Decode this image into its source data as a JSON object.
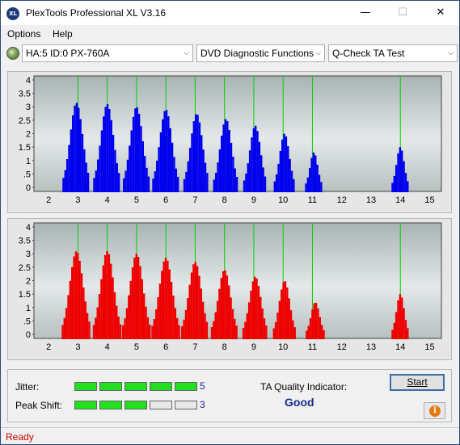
{
  "window": {
    "title": "PlexTools Professional XL V3.16",
    "app_icon_text": "XL",
    "minimize": "—",
    "maximize": "☐",
    "close": "✕"
  },
  "menu": {
    "options": "Options",
    "help": "Help"
  },
  "toolbar": {
    "drive": "HA:5 ID:0  PX-760A",
    "function": "DVD Diagnostic Functions",
    "test": "Q-Check TA Test",
    "arrow": "⌵"
  },
  "chart_data": [
    {
      "type": "bar",
      "panel": "top",
      "color": "#0000ee",
      "x_ticks": [
        2,
        3,
        4,
        5,
        6,
        7,
        8,
        9,
        10,
        11,
        12,
        13,
        14,
        15
      ],
      "y_ticks": [
        0,
        0.5,
        1,
        1.5,
        2,
        2.5,
        3,
        3.5,
        4
      ],
      "y_tick_labels": [
        "0",
        ".5",
        "1",
        "1.5",
        "2",
        "2.5",
        "3",
        "3.5",
        "4"
      ],
      "xlim": [
        1.5,
        15.4
      ],
      "ylim": [
        -0.15,
        4.15
      ],
      "markers": [
        3,
        4,
        5,
        6,
        7,
        8,
        9,
        10,
        11,
        14
      ],
      "peaks": [
        {
          "center": 2.95,
          "height": 3.15,
          "width": 0.33
        },
        {
          "center": 4.0,
          "height": 3.1,
          "width": 0.33
        },
        {
          "center": 5.0,
          "height": 3.0,
          "width": 0.32
        },
        {
          "center": 6.0,
          "height": 2.9,
          "width": 0.32
        },
        {
          "center": 7.05,
          "height": 2.75,
          "width": 0.31
        },
        {
          "center": 8.05,
          "height": 2.55,
          "width": 0.3
        },
        {
          "center": 9.05,
          "height": 2.3,
          "width": 0.28
        },
        {
          "center": 10.05,
          "height": 2.0,
          "width": 0.25
        },
        {
          "center": 11.05,
          "height": 1.3,
          "width": 0.2
        },
        {
          "center": 14.0,
          "height": 1.5,
          "width": 0.2
        }
      ]
    },
    {
      "type": "bar",
      "panel": "bottom",
      "color": "#ee0000",
      "x_ticks": [
        2,
        3,
        4,
        5,
        6,
        7,
        8,
        9,
        10,
        11,
        12,
        13,
        14,
        15
      ],
      "y_ticks": [
        0,
        0.5,
        1,
        1.5,
        2,
        2.5,
        3,
        3.5,
        4
      ],
      "y_tick_labels": [
        "0",
        ".5",
        "1",
        "1.5",
        "2",
        "2.5",
        "3",
        "3.5",
        "4"
      ],
      "xlim": [
        1.5,
        15.4
      ],
      "ylim": [
        -0.15,
        4.15
      ],
      "markers": [
        3,
        4,
        5,
        6,
        7,
        8,
        9,
        10,
        11,
        14
      ],
      "peaks": [
        {
          "center": 2.95,
          "height": 3.1,
          "width": 0.35
        },
        {
          "center": 4.0,
          "height": 3.1,
          "width": 0.34
        },
        {
          "center": 5.0,
          "height": 3.0,
          "width": 0.34
        },
        {
          "center": 6.0,
          "height": 2.85,
          "width": 0.34
        },
        {
          "center": 7.0,
          "height": 2.7,
          "width": 0.33
        },
        {
          "center": 8.0,
          "height": 2.4,
          "width": 0.32
        },
        {
          "center": 9.05,
          "height": 2.15,
          "width": 0.3
        },
        {
          "center": 10.05,
          "height": 2.0,
          "width": 0.27
        },
        {
          "center": 11.1,
          "height": 1.2,
          "width": 0.22
        },
        {
          "center": 14.0,
          "height": 1.5,
          "width": 0.2
        }
      ]
    }
  ],
  "results": {
    "jitter_label": "Jitter:",
    "jitter_value": "5",
    "jitter_level": 5,
    "peak_label": "Peak Shift:",
    "peak_value": "3",
    "peak_level": 3,
    "segments": 5,
    "on_color": "#20e020",
    "off_color": "#e8e8e8",
    "ta_label": "TA Quality Indicator:",
    "ta_value": "Good",
    "start_label": "Start",
    "info_icon_text": "i"
  },
  "status": {
    "text": "Ready"
  }
}
